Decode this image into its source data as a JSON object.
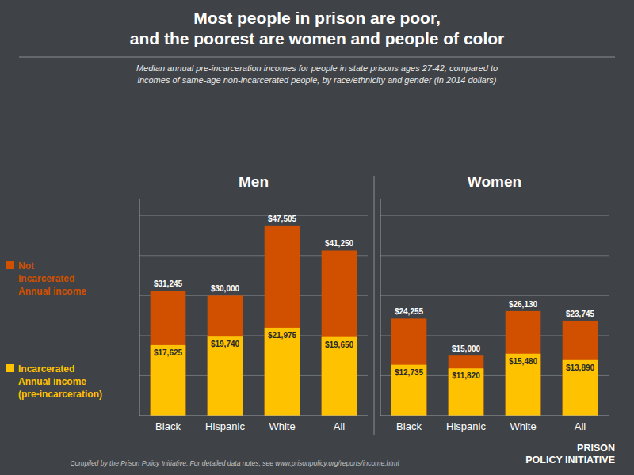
{
  "title": "Most people in prison are poor,\nand the poorest are women and people of color",
  "subtitle": "Median annual pre-incarceration incomes for people in state prisons ages 27-42, compared to\nincomes of same-age non-incarcerated people, by race/ethnicity and gender (in 2014 dollars)",
  "annotations": [
    "Compiled by the Prison Policy Initiative. For detailed data notes, see www.prisonpolicy.org/reports/income.html",
    "PRISON\nPOLICY INITIATIVE"
  ],
  "chart_data": [
    {
      "type": "bar",
      "title": "Men",
      "categories": [
        "Black",
        "Hispanic",
        "White",
        "All"
      ],
      "series": [
        {
          "name": "Incarcerated\nAnnual income\n(pre-incarceration)",
          "color": "#FFC200",
          "values": [
            17625,
            19740,
            21975,
            19650
          ],
          "value_labels": [
            "$17,625",
            "$19,740",
            "$21,975",
            "$19,650"
          ]
        },
        {
          "name": "Not\nincarcerated\nAnnual income",
          "color": "#D05000",
          "values": [
            31245,
            30000,
            47505,
            41250
          ],
          "value_labels": [
            "$31,245",
            "$30,000",
            "$47,505",
            "$41,250"
          ]
        }
      ],
      "ylim": [
        0,
        54000
      ],
      "yticks": [
        10000,
        20000,
        30000,
        40000,
        50000
      ],
      "grid": true,
      "stacked": false,
      "data_labels": true,
      "tick_labels": "x",
      "legend": "left"
    },
    {
      "type": "bar",
      "title": "Women",
      "categories": [
        "Black",
        "Hispanic",
        "White",
        "All"
      ],
      "series": [
        {
          "color": "#FFC200",
          "values": [
            12735,
            11820,
            15480,
            13890
          ],
          "value_labels": [
            "$12,735",
            "$11,820",
            "$15,480",
            "$13,890"
          ]
        },
        {
          "color": "#D05000",
          "values": [
            24255,
            15000,
            26130,
            23745
          ],
          "value_labels": [
            "$24,255",
            "$15,000",
            "$26,130",
            "$23,745"
          ]
        }
      ],
      "ylim": [
        0,
        54000
      ],
      "yticks": [
        10000,
        20000,
        30000,
        40000,
        50000
      ],
      "grid": true,
      "stacked": false,
      "data_labels": true,
      "tick_labels": "x"
    }
  ]
}
